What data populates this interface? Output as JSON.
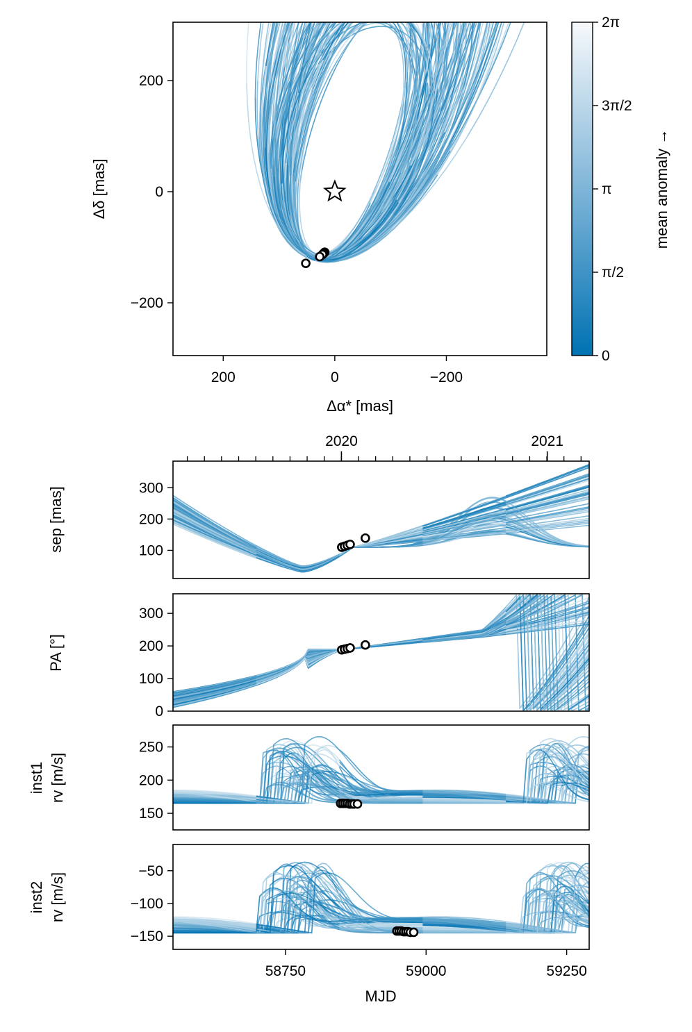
{
  "chart_data": [
    {
      "type": "scatter",
      "panel": "sky",
      "xlabel": "Δα* [mas]",
      "ylabel": "Δδ [mas]",
      "xlim": [
        290,
        -380
      ],
      "ylim": [
        -295,
        305
      ],
      "x_ticks": [
        200,
        0,
        -200
      ],
      "x_tick_labels": [
        "200",
        "0",
        "−200"
      ],
      "y_ticks": [
        200,
        0,
        -200
      ],
      "y_tick_labels": [
        "200",
        "0",
        "−200"
      ],
      "star": {
        "x": 0,
        "y": 0,
        "marker": "star"
      },
      "observations": [
        {
          "x": 18,
          "y": -109
        },
        {
          "x": 20,
          "y": -111
        },
        {
          "x": 22,
          "y": -113
        },
        {
          "x": 27,
          "y": -117
        },
        {
          "x": 52,
          "y": -129
        }
      ],
      "orbit_color": "#0072b2",
      "colorbar": {
        "label": "mean anomaly →",
        "ticks": [
          0,
          1.5708,
          3.1416,
          4.7124,
          6.2832
        ],
        "tick_labels": [
          "0",
          "π/2",
          "π",
          "3π/2",
          "2π"
        ],
        "color_low": "#0072b2",
        "color_high": "#ffffff"
      }
    },
    {
      "type": "line",
      "panel": "sep",
      "ylabel": "sep [mas]",
      "xlim": [
        58550,
        59290
      ],
      "ylim": [
        10,
        385
      ],
      "y_ticks": [
        100,
        200,
        300
      ],
      "y_tick_labels": [
        "100",
        "200",
        "300"
      ],
      "top_axis_ticks": [
        58849.5,
        59215.5
      ],
      "top_axis_labels": [
        "2020",
        "2021"
      ],
      "observations": [
        {
          "x": 58850,
          "y": 110
        },
        {
          "x": 58855,
          "y": 113
        },
        {
          "x": 58860,
          "y": 116
        },
        {
          "x": 58865,
          "y": 119
        },
        {
          "x": 58892,
          "y": 139
        }
      ]
    },
    {
      "type": "line",
      "panel": "pa",
      "ylabel": "PA [°]",
      "xlim": [
        58550,
        59290
      ],
      "ylim": [
        0,
        360
      ],
      "y_ticks": [
        0,
        100,
        200,
        300
      ],
      "y_tick_labels": [
        "0",
        "100",
        "200",
        "300"
      ],
      "observations": [
        {
          "x": 58850,
          "y": 188
        },
        {
          "x": 58855,
          "y": 190
        },
        {
          "x": 58860,
          "y": 192
        },
        {
          "x": 58865,
          "y": 194
        },
        {
          "x": 58892,
          "y": 203
        }
      ]
    },
    {
      "type": "line",
      "panel": "rv1",
      "ylabel": [
        "inst1",
        "rv [m/s]"
      ],
      "xlim": [
        58550,
        59290
      ],
      "ylim": [
        125,
        283
      ],
      "y_ticks": [
        150,
        200,
        250
      ],
      "y_tick_labels": [
        "150",
        "200",
        "250"
      ],
      "observations": [
        {
          "x": 58848,
          "y": 165
        },
        {
          "x": 58852,
          "y": 165
        },
        {
          "x": 58856,
          "y": 165
        },
        {
          "x": 58860,
          "y": 165
        },
        {
          "x": 58864,
          "y": 164
        },
        {
          "x": 58868,
          "y": 164
        },
        {
          "x": 58872,
          "y": 164
        },
        {
          "x": 58878,
          "y": 164
        }
      ]
    },
    {
      "type": "line",
      "panel": "rv2",
      "ylabel": [
        "inst2",
        "rv [m/s]"
      ],
      "xlabel": "MJD",
      "xlim": [
        58550,
        59290
      ],
      "ylim": [
        -170,
        -10
      ],
      "y_ticks": [
        -150,
        -100,
        -50
      ],
      "y_tick_labels": [
        "−150",
        "−100",
        "−50"
      ],
      "x_ticks": [
        58750,
        59000,
        59250
      ],
      "x_tick_labels": [
        "58750",
        "59000",
        "59250"
      ],
      "observations": [
        {
          "x": 58948,
          "y": -142
        },
        {
          "x": 58952,
          "y": -142
        },
        {
          "x": 58956,
          "y": -142
        },
        {
          "x": 58960,
          "y": -143
        },
        {
          "x": 58964,
          "y": -143
        },
        {
          "x": 58968,
          "y": -143
        },
        {
          "x": 58972,
          "y": -144
        },
        {
          "x": 58978,
          "y": -144
        }
      ]
    }
  ]
}
